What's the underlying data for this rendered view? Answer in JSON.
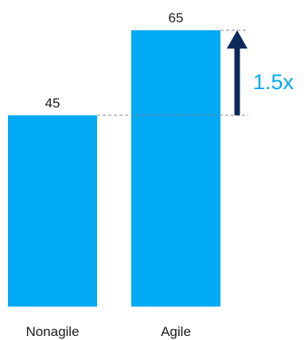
{
  "chart_data": {
    "type": "bar",
    "categories": [
      "Nonagile",
      "Agile"
    ],
    "values": [
      45,
      65
    ],
    "data_labels": [
      "45",
      "65"
    ],
    "ylim": [
      0,
      65
    ],
    "title": "",
    "xlabel": "",
    "ylabel": "",
    "grid": false,
    "legend": "none",
    "annotation": {
      "text": "1.5x",
      "from_value": 45,
      "to_value": 65
    },
    "colors": {
      "bar": "#00a9f4",
      "arrow": "#0b2a5a",
      "annotation_text": "#00a9f4",
      "guide_line": "#8a8a8a"
    }
  }
}
